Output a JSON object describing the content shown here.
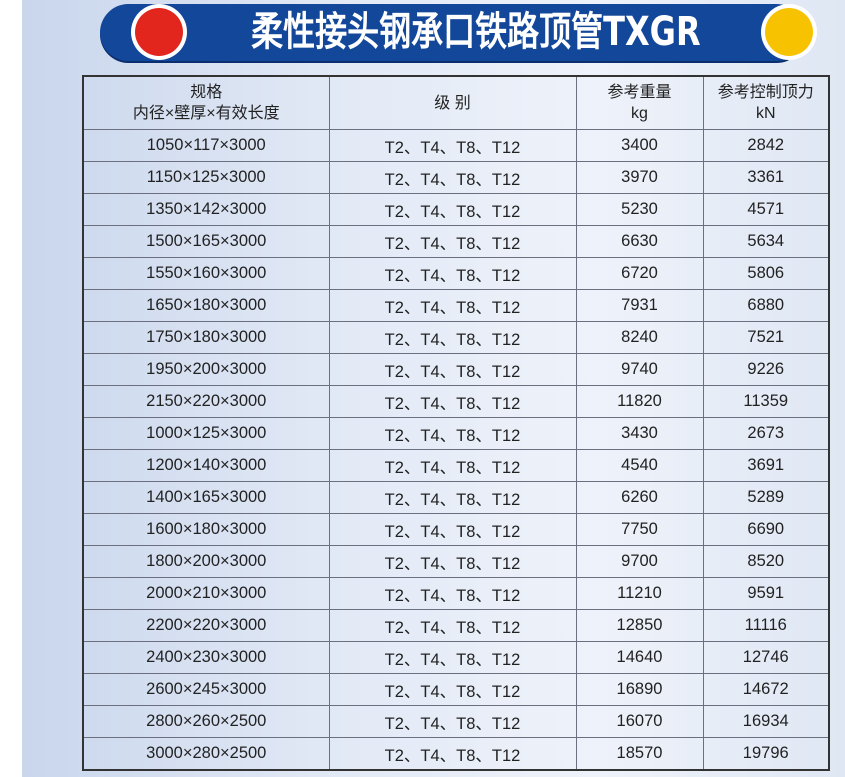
{
  "title": "柔性接头钢承口铁路顶管TXGR",
  "colors": {
    "banner": "#13479a",
    "left_dot": "#e2261d",
    "right_dot": "#f7c300"
  },
  "table": {
    "headers": [
      {
        "line1": "规格",
        "line2": "内径×壁厚×有效长度"
      },
      {
        "line1": "级  别",
        "line2": ""
      },
      {
        "line1": "参考重量",
        "line2": "kg"
      },
      {
        "line1": "参考控制顶力",
        "line2": "kN"
      }
    ],
    "rows": [
      [
        "1050×117×3000",
        "T2、T4、T8、T12",
        "3400",
        "2842"
      ],
      [
        "1150×125×3000",
        "T2、T4、T8、T12",
        "3970",
        "3361"
      ],
      [
        "1350×142×3000",
        "T2、T4、T8、T12",
        "5230",
        "4571"
      ],
      [
        "1500×165×3000",
        "T2、T4、T8、T12",
        "6630",
        "5634"
      ],
      [
        "1550×160×3000",
        "T2、T4、T8、T12",
        "6720",
        "5806"
      ],
      [
        "1650×180×3000",
        "T2、T4、T8、T12",
        "7931",
        "6880"
      ],
      [
        "1750×180×3000",
        "T2、T4、T8、T12",
        "8240",
        "7521"
      ],
      [
        "1950×200×3000",
        "T2、T4、T8、T12",
        "9740",
        "9226"
      ],
      [
        "2150×220×3000",
        "T2、T4、T8、T12",
        "11820",
        "11359"
      ],
      [
        "1000×125×3000",
        "T2、T4、T8、T12",
        "3430",
        "2673"
      ],
      [
        "1200×140×3000",
        "T2、T4、T8、T12",
        "4540",
        "3691"
      ],
      [
        "1400×165×3000",
        "T2、T4、T8、T12",
        "6260",
        "5289"
      ],
      [
        "1600×180×3000",
        "T2、T4、T8、T12",
        "7750",
        "6690"
      ],
      [
        "1800×200×3000",
        "T2、T4、T8、T12",
        "9700",
        "8520"
      ],
      [
        "2000×210×3000",
        "T2、T4、T8、T12",
        "11210",
        "9591"
      ],
      [
        "2200×220×3000",
        "T2、T4、T8、T12",
        "12850",
        "11116"
      ],
      [
        "2400×230×3000",
        "T2、T4、T8、T12",
        "14640",
        "12746"
      ],
      [
        "2600×245×3000",
        "T2、T4、T8、T12",
        "16890",
        "14672"
      ],
      [
        "2800×260×2500",
        "T2、T4、T8、T12",
        "16070",
        "16934"
      ],
      [
        "3000×280×2500",
        "T2、T4、T8、T12",
        "18570",
        "19796"
      ]
    ]
  }
}
